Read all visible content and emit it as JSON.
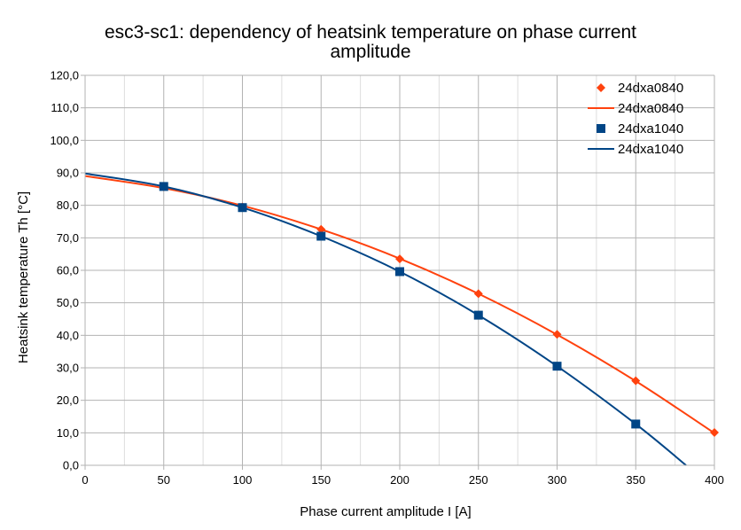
{
  "chart_data": {
    "type": "scatter",
    "title": "esc3-sc1: dependency of heatsink temperature on phase current amplitude",
    "title_lines": [
      "esc3-sc1: dependency of heatsink temperature on phase current",
      "amplitude"
    ],
    "xlabel": "Phase current amplitude I [A]",
    "ylabel": "Heatsink temperature Th [°C]",
    "xlim": [
      0,
      400
    ],
    "ylim": [
      0,
      120
    ],
    "x_ticks": [
      0,
      50,
      100,
      150,
      200,
      250,
      300,
      350,
      400
    ],
    "x_tick_labels": [
      "0",
      "50",
      "100",
      "150",
      "200",
      "250",
      "300",
      "350",
      "400"
    ],
    "y_ticks": [
      0,
      10,
      20,
      30,
      40,
      50,
      60,
      70,
      80,
      90,
      100,
      110,
      120
    ],
    "y_tick_labels": [
      "0,0",
      "10,0",
      "20,0",
      "30,0",
      "40,0",
      "50,0",
      "60,0",
      "70,0",
      "80,0",
      "90,0",
      "100,0",
      "110,0",
      "120,0"
    ],
    "grid": true,
    "legend_position": "top-right",
    "series": [
      {
        "name": "24dxa0840",
        "kind": "markers",
        "marker": "diamond",
        "color": "#ff420e",
        "x": [
          50,
          100,
          150,
          200,
          250,
          300,
          350,
          400
        ],
        "y": [
          85.7,
          79.5,
          72.6,
          63.5,
          52.8,
          40.3,
          26.0,
          10.1
        ]
      },
      {
        "name": "24dxa0840",
        "kind": "curve",
        "color": "#ff420e",
        "x": [
          0,
          50,
          100,
          150,
          200,
          250,
          300,
          350,
          400
        ],
        "y": [
          89.0,
          85.3,
          79.9,
          72.6,
          63.6,
          52.8,
          40.2,
          25.9,
          9.9
        ]
      },
      {
        "name": "24dxa1040",
        "kind": "markers",
        "marker": "square",
        "color": "#004586",
        "x": [
          50,
          100,
          150,
          200,
          250,
          300,
          350
        ],
        "y": [
          85.8,
          79.3,
          70.5,
          59.6,
          46.2,
          30.5,
          12.7
        ]
      },
      {
        "name": "24dxa1040",
        "kind": "curve",
        "color": "#004586",
        "x": [
          0,
          50,
          100,
          150,
          200,
          250,
          300,
          350,
          382
        ],
        "y": [
          89.8,
          85.8,
          79.3,
          70.5,
          59.6,
          46.2,
          30.5,
          12.7,
          0.0
        ]
      }
    ]
  }
}
